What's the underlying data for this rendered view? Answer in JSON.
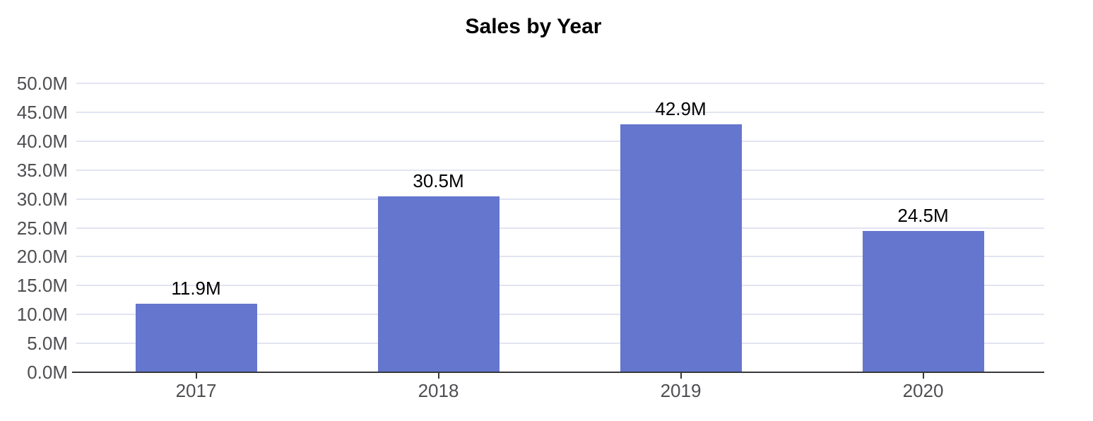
{
  "title": "Sales by Year",
  "colors": {
    "bar": "#6476ce",
    "gridline": "#e2e4f1",
    "axis_line": "#38383c",
    "axis_label": "#4f4f53",
    "data_label": "#000000",
    "title": "#000000",
    "background": "#ffffff"
  },
  "chart_data": {
    "type": "bar",
    "title": "Sales by Year",
    "categories": [
      "2017",
      "2018",
      "2019",
      "2020"
    ],
    "values": [
      11900000,
      30500000,
      42900000,
      24500000
    ],
    "data_labels": [
      "11.9M",
      "30.5M",
      "42.9M",
      "24.5M"
    ],
    "xlabel": "",
    "ylabel": "",
    "ylim": [
      0,
      50000000
    ],
    "ytick_interval": 5000000,
    "ytick_labels": [
      "0.0M",
      "5.0M",
      "10.0M",
      "15.0M",
      "20.0M",
      "25.0M",
      "30.0M",
      "35.0M",
      "40.0M",
      "45.0M",
      "50.0M"
    ],
    "grid": true,
    "legend_position": "none",
    "series_name": "Sales"
  }
}
